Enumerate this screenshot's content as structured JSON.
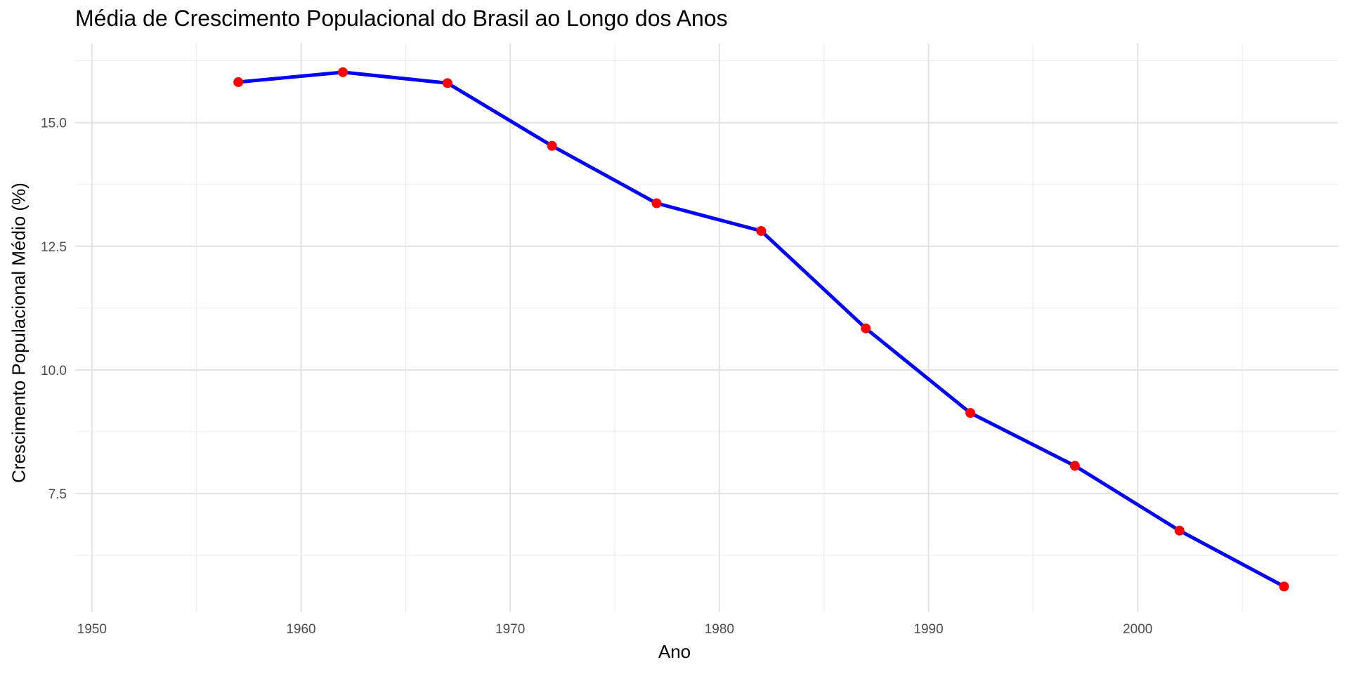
{
  "chart_data": {
    "type": "line",
    "title": "Média de Crescimento Populacional do Brasil ao Longo dos Anos",
    "xlabel": "Ano",
    "ylabel": "Crescimento Populacional Médio (%)",
    "xlim": [
      1949.2,
      2009.6
    ],
    "ylim": [
      5.1,
      16.6
    ],
    "x_ticks": [
      1950,
      1960,
      1970,
      1980,
      1990,
      2000
    ],
    "x_tick_labels": [
      "1950",
      "1960",
      "1970",
      "1980",
      "1990",
      "2000"
    ],
    "y_ticks": [
      7.5,
      10.0,
      12.5,
      15.0
    ],
    "y_tick_labels": [
      "7.5",
      "10.0",
      "12.5",
      "15.0"
    ],
    "grid": true,
    "line_color": "#0000ff",
    "point_color": "#ff0000",
    "series": [
      {
        "x": [
          1957,
          1962,
          1967,
          1972,
          1977,
          1982,
          1987,
          1992,
          1997,
          2002,
          2007
        ],
        "values": [
          15.82,
          16.02,
          15.8,
          14.53,
          13.37,
          12.81,
          10.84,
          9.13,
          8.06,
          6.75,
          5.62
        ]
      }
    ]
  }
}
